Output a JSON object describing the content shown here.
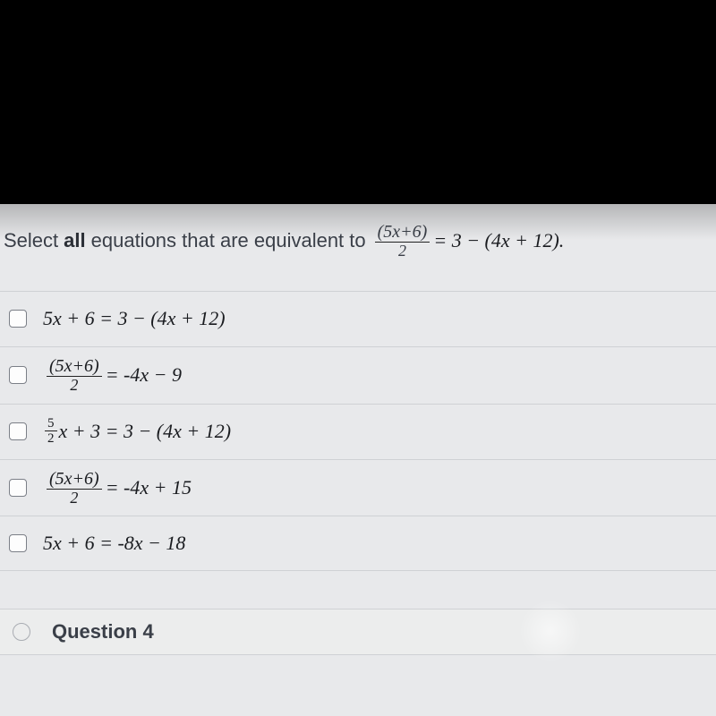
{
  "colors": {
    "page_bg": "#000000",
    "content_bg": "#e8e9eb",
    "text_primary": "#3a3f48",
    "text_bold": "#2b2f36",
    "math_text": "#1a1c20",
    "row_border": "#cfd1d4",
    "checkbox_border": "#7b7f87",
    "checkbox_bg": "#fdfdfd",
    "frac_bar": "#222222"
  },
  "typography": {
    "body_fontsize": 22,
    "math_fontsize": 22,
    "small_frac_fontsize": 15,
    "prompt_frac_num_fontsize": 20,
    "prompt_frac_den_fontsize": 18
  },
  "prompt": {
    "lead1": "Select",
    "bold": "all",
    "lead2": "equations that are equivalent to",
    "frac_num": "(5x+6)",
    "frac_den": "2",
    "rhs": "= 3 − (4x + 12).",
    "full_text_plain": "Select all equations that are equivalent to (5x+6)/2 = 3 − (4x + 12)."
  },
  "options": [
    {
      "id": "opt-1",
      "checked": false,
      "display_type": "plain",
      "text": "5x + 6 = 3 − (4x + 12)",
      "plain": "5x + 6 = 3 - (4x + 12)"
    },
    {
      "id": "opt-2",
      "checked": false,
      "display_type": "frac_lhs",
      "frac_num": "(5x+6)",
      "frac_den": "2",
      "rest": " = -4x − 9",
      "plain": "(5x+6)/2 = -4x - 9"
    },
    {
      "id": "opt-3",
      "checked": false,
      "display_type": "small_frac_coeff",
      "coeff_num": "5",
      "coeff_den": "2",
      "rest": "x + 3 = 3 − (4x + 12)",
      "plain": "5/2 x + 3 = 3 - (4x + 12)"
    },
    {
      "id": "opt-4",
      "checked": false,
      "display_type": "frac_lhs",
      "frac_num": "(5x+6)",
      "frac_den": "2",
      "rest": " = -4x + 15",
      "plain": "(5x+6)/2 = -4x + 15"
    },
    {
      "id": "opt-5",
      "checked": false,
      "display_type": "plain",
      "text": "5x + 6 = -8x − 18",
      "plain": "5x + 6 = -8x - 18"
    }
  ],
  "next_question_label": "Question 4"
}
